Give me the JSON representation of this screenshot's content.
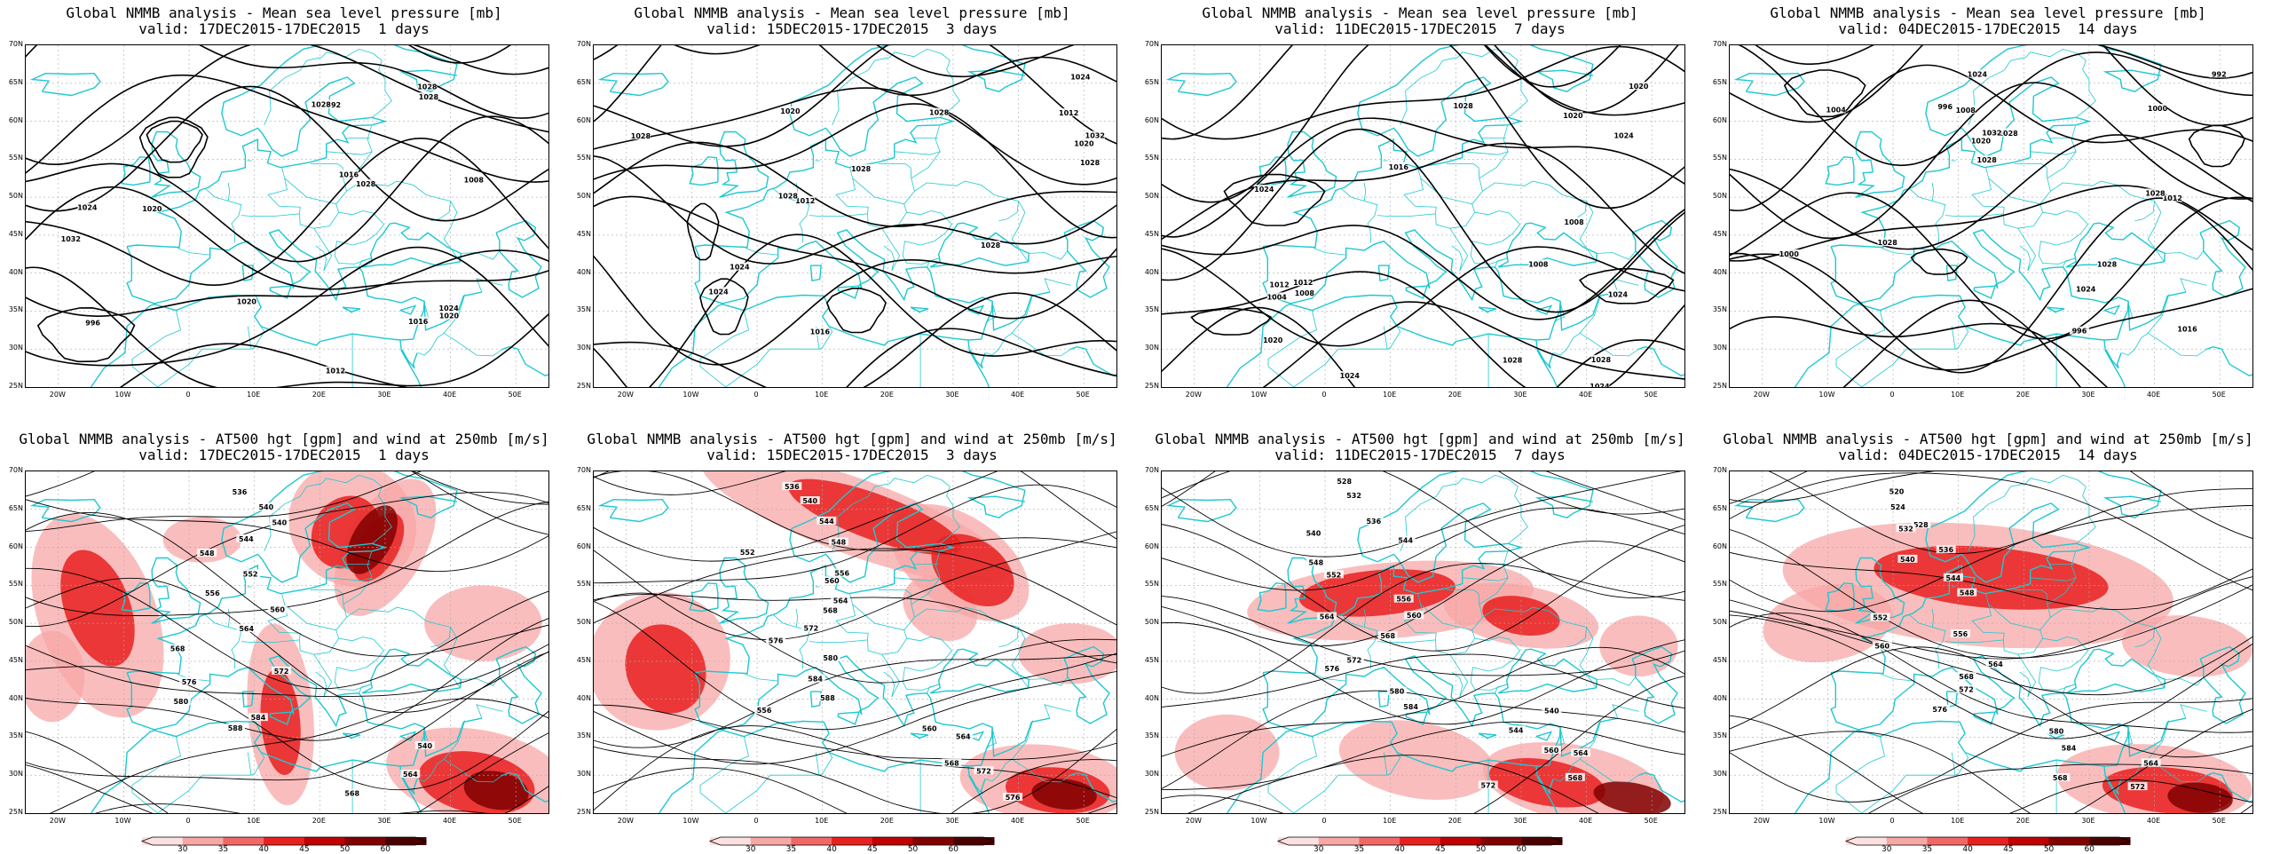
{
  "panels": [
    {
      "row": "mslp",
      "line1": "Global NMMB analysis - Mean sea level pressure [mb]",
      "line2": "valid: 17DEC2015-17DEC2015  1 days",
      "contour_labels": [
        "996",
        "992",
        "1012",
        "1016",
        "1020",
        "1024",
        "1028",
        "1032",
        "1024",
        "1028",
        "1020",
        "1016",
        "1028",
        "1028",
        "1020",
        "1008"
      ]
    },
    {
      "row": "mslp",
      "line1": "Global NMMB analysis - Mean sea level pressure [mb]",
      "line2": "valid: 15DEC2015-17DEC2015  3 days",
      "contour_labels": [
        "1012",
        "1012",
        "1016",
        "1020",
        "1024",
        "1028",
        "1032",
        "1028",
        "1024",
        "1028",
        "1028",
        "1024",
        "1020",
        "1028",
        "1028"
      ]
    },
    {
      "row": "mslp",
      "line1": "Global NMMB analysis - Mean sea level pressure [mb]",
      "line2": "valid: 11DEC2015-17DEC2015  7 days",
      "contour_labels": [
        "1008",
        "1004",
        "1008",
        "1012",
        "1008",
        "1012",
        "1016",
        "1020",
        "1024",
        "1024",
        "1024",
        "1028",
        "1024",
        "1028",
        "1020",
        "1020",
        "1024",
        "1028"
      ]
    },
    {
      "row": "mslp",
      "line1": "Global NMMB analysis - Mean sea level pressure [mb]",
      "line2": "valid: 04DEC2015-17DEC2015  14 days",
      "contour_labels": [
        "996",
        "992",
        "1000",
        "996",
        "1004",
        "1008",
        "1012",
        "1016",
        "1020",
        "1024",
        "1028",
        "1032",
        "1028",
        "1024",
        "1028",
        "1028",
        "1028",
        "1000",
        "1004"
      ]
    },
    {
      "row": "z500",
      "line1": "Global NMMB analysis - AT500 hgt [gpm] and wind at 250mb [m/s]",
      "line2": "valid: 17DEC2015-17DEC2015  1 days",
      "contour_labels": [
        "536",
        "540",
        "540",
        "544",
        "548",
        "552",
        "556",
        "560",
        "564",
        "568",
        "572",
        "576",
        "580",
        "584",
        "588",
        "540",
        "564",
        "568"
      ]
    },
    {
      "row": "z500",
      "line1": "Global NMMB analysis - AT500 hgt [gpm] and wind at 250mb [m/s]",
      "line2": "valid: 15DEC2015-17DEC2015  3 days",
      "contour_labels": [
        "536",
        "540",
        "544",
        "548",
        "552",
        "556",
        "560",
        "564",
        "568",
        "572",
        "576",
        "580",
        "584",
        "588",
        "556",
        "560",
        "564",
        "568",
        "572",
        "576"
      ]
    },
    {
      "row": "z500",
      "line1": "Global NMMB analysis - AT500 hgt [gpm] and wind at 250mb [m/s]",
      "line2": "valid: 11DEC2015-17DEC2015  7 days",
      "contour_labels": [
        "528",
        "532",
        "536",
        "540",
        "544",
        "548",
        "552",
        "556",
        "560",
        "564",
        "568",
        "572",
        "576",
        "580",
        "584",
        "540",
        "544",
        "560",
        "564",
        "568",
        "572"
      ]
    },
    {
      "row": "z500",
      "line1": "Global NMMB analysis - AT500 hgt [gpm] and wind at 250mb [m/s]",
      "line2": "valid: 04DEC2015-17DEC2015  14 days",
      "contour_labels": [
        "520",
        "524",
        "528",
        "532",
        "536",
        "540",
        "544",
        "548",
        "552",
        "556",
        "560",
        "564",
        "568",
        "572",
        "576",
        "580",
        "584",
        "564",
        "568",
        "572"
      ]
    }
  ],
  "lat_labels": [
    "70N",
    "65N",
    "60N",
    "55N",
    "50N",
    "45N",
    "40N",
    "35N",
    "30N",
    "25N"
  ],
  "lon_labels": [
    "20W",
    "10W",
    "0",
    "10E",
    "20E",
    "30E",
    "40E",
    "50E"
  ],
  "colorbar_labels": [
    "30",
    "35",
    "40",
    "45",
    "50",
    "60"
  ],
  "colors": {
    "coast": "#1ec8d0",
    "contour": "#000000",
    "grid": "#aaaaaa",
    "wind": [
      "#fde0e0",
      "#f8a7a7",
      "#f26767",
      "#e82020",
      "#c00000",
      "#800000",
      "#4a0000"
    ]
  }
}
